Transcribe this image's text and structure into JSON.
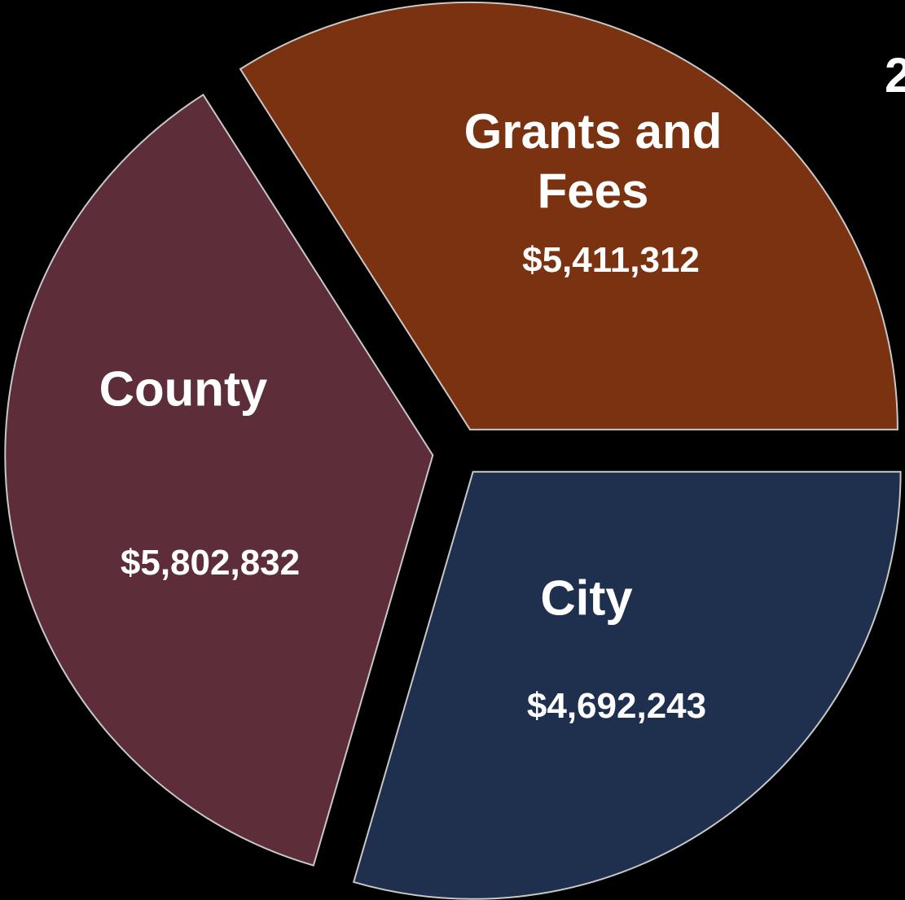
{
  "chart_data": {
    "type": "pie",
    "title": "2",
    "categories": [
      "Grants and Fees",
      "City",
      "County"
    ],
    "values": [
      5411312,
      4692243,
      5802832
    ],
    "value_labels": [
      "$5,411,312",
      "$4,692,243",
      "$5,802,832"
    ],
    "colors": [
      "#7a3210",
      "#1f304f",
      "#5e2d3a"
    ]
  }
}
